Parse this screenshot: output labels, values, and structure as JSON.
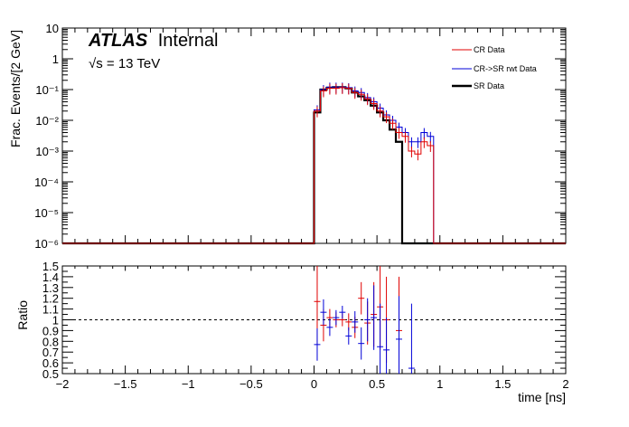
{
  "colors": {
    "cr": "#e00000",
    "rwt": "#0000d8",
    "sr": "#000000"
  },
  "annotations": {
    "experiment": "ATLAS",
    "status": "Internal",
    "energy": "√s = 13 TeV"
  },
  "legend": {
    "cr_label": "CR Data",
    "rwt_label": "CR->SR rwt Data",
    "sr_label": "SR Data"
  },
  "chart_data": [
    {
      "type": "line",
      "panel": "main",
      "title": "",
      "ylabel": "Frac. Events/[2 GeV]",
      "xlabel": "",
      "xlim": [
        -2,
        2
      ],
      "ylim": [
        1e-06,
        10
      ],
      "log_y": true,
      "y_tick_labels": [
        "10",
        "1",
        "10⁻¹",
        "10⁻²",
        "10⁻³",
        "10⁻⁴",
        "10⁻⁵",
        "10⁻⁶"
      ],
      "legend_placement": "top-right",
      "grid": false,
      "x": [
        0.0,
        0.05,
        0.1,
        0.15,
        0.2,
        0.25,
        0.3,
        0.35,
        0.4,
        0.45,
        0.5,
        0.55,
        0.6,
        0.65,
        0.7,
        0.75,
        0.8,
        0.85,
        0.9
      ],
      "series": [
        {
          "name": "CR Data",
          "key": "cr",
          "values": [
            0.02,
            0.09,
            0.11,
            0.11,
            0.115,
            0.11,
            0.08,
            0.07,
            0.05,
            0.035,
            0.02,
            0.013,
            0.008,
            0.004,
            0.003,
            0.001,
            0.0008,
            0.002,
            0.0015
          ]
        },
        {
          "name": "CR->SR rwt Data",
          "key": "rwt",
          "values": [
            0.022,
            0.1,
            0.12,
            0.12,
            0.12,
            0.115,
            0.09,
            0.08,
            0.055,
            0.04,
            0.025,
            0.015,
            0.01,
            0.006,
            0.004,
            0.002,
            0.002,
            0.004,
            0.003
          ]
        },
        {
          "name": "SR Data",
          "key": "sr",
          "values": [
            0.018,
            0.1,
            0.115,
            0.12,
            0.12,
            0.11,
            0.08,
            0.06,
            0.045,
            0.03,
            0.018,
            0.01,
            0.005,
            0.002,
            1e-06,
            1e-06,
            1e-06,
            1e-06,
            1e-06
          ]
        }
      ]
    },
    {
      "type": "scatter",
      "panel": "ratio",
      "title": "",
      "ylabel": "Ratio",
      "xlabel": "time [ns]",
      "xlim": [
        -2,
        2
      ],
      "ylim": [
        0.5,
        1.5
      ],
      "x_tick_labels": [
        "−2",
        "−1.5",
        "−1",
        "−0.5",
        "0",
        "0.5",
        "1",
        "1.5",
        "2"
      ],
      "y_tick_labels": [
        "1.5",
        "1.4",
        "1.3",
        "1.2",
        "1.1",
        "1",
        "0.9",
        "0.8",
        "0.7",
        "0.6",
        "0.5"
      ],
      "reference_line": 1.0,
      "grid": false,
      "series": [
        {
          "name": "CR Data",
          "key": "cr",
          "x": [
            0.0,
            0.05,
            0.1,
            0.15,
            0.2,
            0.25,
            0.3,
            0.35,
            0.4,
            0.45,
            0.5,
            0.55,
            0.65
          ],
          "y": [
            1.17,
            0.95,
            1.02,
            1.0,
            1.0,
            0.98,
            0.93,
            1.2,
            0.97,
            1.05,
            1.12,
            1.0,
            0.9
          ],
          "err": [
            0.4,
            0.15,
            0.08,
            0.07,
            0.06,
            0.08,
            0.1,
            0.15,
            0.2,
            0.3,
            0.4,
            0.4,
            0.5
          ]
        },
        {
          "name": "CR->SR rwt Data",
          "key": "rwt",
          "x": [
            0.0,
            0.05,
            0.1,
            0.15,
            0.2,
            0.25,
            0.3,
            0.35,
            0.4,
            0.45,
            0.5,
            0.55,
            0.65,
            0.75
          ],
          "y": [
            0.77,
            1.07,
            0.93,
            1.02,
            1.07,
            0.85,
            0.98,
            0.78,
            1.0,
            1.02,
            0.75,
            0.72,
            0.82,
            0.55
          ],
          "err": [
            0.15,
            0.12,
            0.08,
            0.07,
            0.06,
            0.08,
            0.1,
            0.15,
            0.2,
            0.3,
            0.4,
            0.3,
            0.4,
            0.6
          ]
        }
      ]
    }
  ]
}
